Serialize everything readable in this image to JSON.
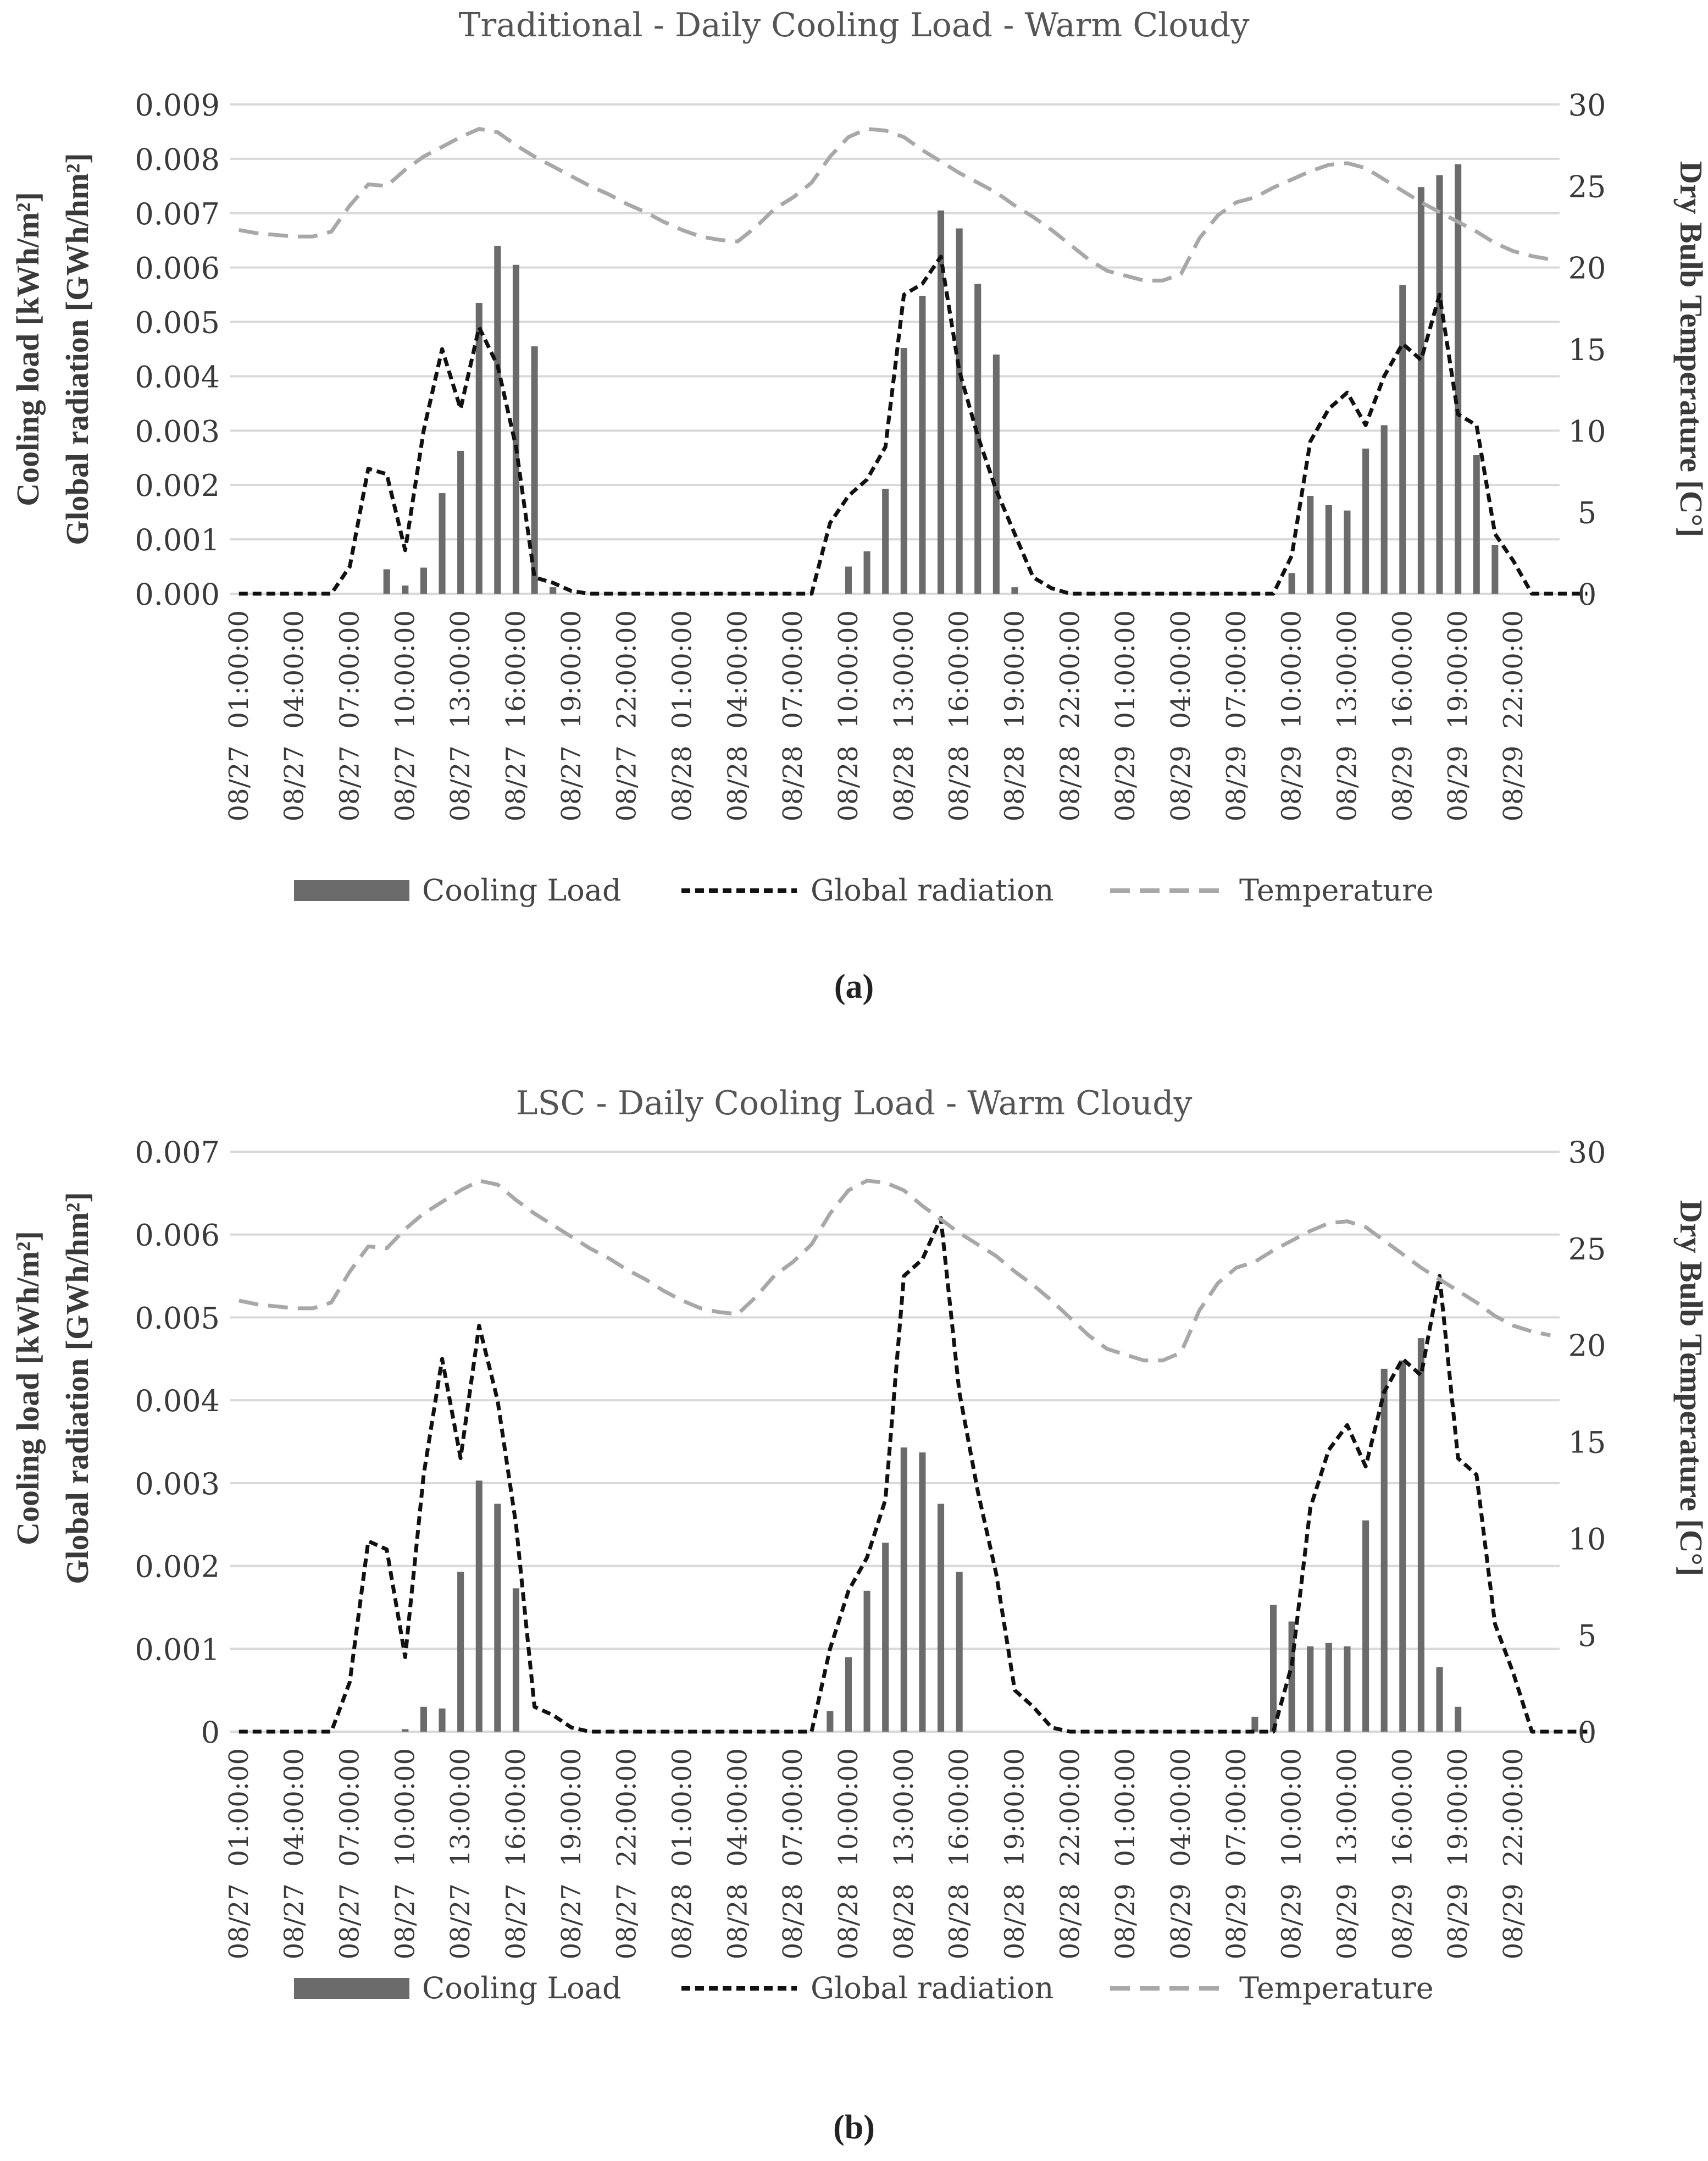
{
  "charts": [
    {
      "id": "a",
      "panel_label": "(a)",
      "title": "Traditional - Daily Cooling Load - Warm Cloudy",
      "ylabel_left_line1": "Cooling load [kWh/m²]",
      "ylabel_left_line2": "Global radiation [GWh/hm²]",
      "ylabel_right": "Dry Bulb Temperature [C°]",
      "legend": {
        "bar": "Cooling Load",
        "radiation": "Global radiation",
        "temperature": "Temperature"
      }
    },
    {
      "id": "b",
      "panel_label": "(b)",
      "title": "LSC - Daily Cooling Load - Warm Cloudy",
      "ylabel_left_line1": "Cooling load [kWh/m²]",
      "ylabel_left_line2": "Global radiation [GWh/hm²]",
      "ylabel_right": "Dry Bulb Temperature [C°]",
      "legend": {
        "bar": "Cooling Load",
        "radiation": "Global radiation",
        "temperature": "Temperature"
      }
    }
  ],
  "chart_data": [
    {
      "type": "bar+line",
      "title": "Traditional - Daily Cooling Load - Warm Cloudy",
      "x_hours": "1..72 (hourly, 08/27 01:00 to 08/29 24:00)",
      "x_tick_labels": [
        "08/27  01:00:00",
        "08/27  04:00:00",
        "08/27  07:00:00",
        "08/27  10:00:00",
        "08/27  13:00:00",
        "08/27  16:00:00",
        "08/27  19:00:00",
        "08/27  22:00:00",
        "08/28  01:00:00",
        "08/28  04:00:00",
        "08/28  07:00:00",
        "08/28  10:00:00",
        "08/28  13:00:00",
        "08/28  16:00:00",
        "08/28  19:00:00",
        "08/28  22:00:00",
        "08/29  01:00:00",
        "08/29  04:00:00",
        "08/29  07:00:00",
        "08/29  10:00:00",
        "08/29  13:00:00",
        "08/29  16:00:00",
        "08/29  19:00:00",
        "08/29  22:00:00"
      ],
      "y_left": {
        "label": "Cooling load [kWh/m²] / Global radiation [GWh/hm²]",
        "min": 0,
        "max": 0.009,
        "step": 0.001,
        "tick_labels": [
          "0.000",
          "0.001",
          "0.002",
          "0.003",
          "0.004",
          "0.005",
          "0.006",
          "0.007",
          "0.008",
          "0.009"
        ]
      },
      "y_right": {
        "label": "Dry Bulb Temperature [C°]",
        "min": 0,
        "max": 30,
        "step": 5,
        "tick_labels": [
          "0",
          "5",
          "10",
          "15",
          "20",
          "25",
          "30"
        ]
      },
      "series": [
        {
          "name": "Cooling Load",
          "kind": "bar",
          "axis": "left",
          "values": [
            0,
            0,
            0,
            0,
            0,
            0,
            0,
            0,
            0.00045,
            0.00015,
            0.00048,
            0.00185,
            0.00263,
            0.00535,
            0.0064,
            0.00605,
            0.00455,
            0.00012,
            0,
            0,
            0,
            0,
            0,
            0,
            0,
            0,
            0,
            0,
            0,
            0,
            0,
            0,
            0,
            0.0005,
            0.00078,
            0.00193,
            0.00452,
            0.00548,
            0.00705,
            0.00672,
            0.0057,
            0.0044,
            0.00012,
            0,
            0,
            0,
            0,
            0,
            0,
            0,
            0,
            0,
            0,
            0,
            0,
            0,
            0,
            0.00038,
            0.0018,
            0.00163,
            0.00153,
            0.00267,
            0.0031,
            0.00568,
            0.00748,
            0.0077,
            0.0079,
            0.00255,
            0.0009,
            0,
            0,
            0
          ]
        },
        {
          "name": "Global radiation",
          "kind": "line",
          "style": "dashed-black",
          "axis": "left",
          "values": [
            0,
            0,
            0,
            0,
            0,
            0,
            0.0005,
            0.0023,
            0.0022,
            0.0008,
            0.003,
            0.0045,
            0.0034,
            0.0049,
            0.0042,
            0.0027,
            0.0003,
            0.0002,
            5e-05,
            0,
            0,
            0,
            0,
            0,
            0,
            0,
            0,
            0,
            0,
            0,
            0,
            0,
            0.0013,
            0.0018,
            0.0021,
            0.0027,
            0.0055,
            0.0057,
            0.0062,
            0.0041,
            0.0029,
            0.0019,
            0.0011,
            0.0003,
            0.0001,
            0,
            0,
            0,
            0,
            0,
            0,
            0,
            0,
            0,
            0,
            0,
            0,
            0.0007,
            0.0028,
            0.0034,
            0.0037,
            0.0031,
            0.004,
            0.0046,
            0.0043,
            0.0055,
            0.0033,
            0.0031,
            0.0011,
            0.0006,
            0,
            0,
            0,
            0
          ]
        },
        {
          "name": "Temperature",
          "kind": "line",
          "style": "dashed-gray",
          "axis": "right",
          "values": [
            22.3,
            22.1,
            22,
            21.9,
            21.9,
            22.2,
            23.8,
            25.1,
            25,
            26,
            26.8,
            27.4,
            28,
            28.5,
            28.3,
            27.5,
            26.8,
            26.2,
            25.6,
            25,
            24.5,
            23.9,
            23.4,
            22.8,
            22.3,
            21.9,
            21.7,
            21.6,
            22.5,
            23.6,
            24.3,
            25.2,
            26.8,
            28,
            28.5,
            28.4,
            28,
            27.2,
            26.5,
            25.8,
            25.2,
            24.6,
            23.8,
            23.1,
            22.3,
            21.4,
            20.5,
            19.8,
            19.5,
            19.2,
            19.2,
            19.6,
            21.8,
            23.2,
            24,
            24.3,
            24.9,
            25.4,
            25.9,
            26.3,
            26.4,
            26.1,
            25.4,
            24.7,
            24,
            23.4,
            22.8,
            22.2,
            21.5,
            21,
            20.7,
            20.5
          ]
        }
      ]
    },
    {
      "type": "bar+line",
      "title": "LSC - Daily Cooling Load - Warm Cloudy",
      "x_hours": "1..72 (hourly, 08/27 01:00 to 08/29 24:00)",
      "x_tick_labels": [
        "08/27  01:00:00",
        "08/27  04:00:00",
        "08/27  07:00:00",
        "08/27  10:00:00",
        "08/27  13:00:00",
        "08/27  16:00:00",
        "08/27  19:00:00",
        "08/27  22:00:00",
        "08/28  01:00:00",
        "08/28  04:00:00",
        "08/28  07:00:00",
        "08/28  10:00:00",
        "08/28  13:00:00",
        "08/28  16:00:00",
        "08/28  19:00:00",
        "08/28  22:00:00",
        "08/29  01:00:00",
        "08/29  04:00:00",
        "08/29  07:00:00",
        "08/29  10:00:00",
        "08/29  13:00:00",
        "08/29  16:00:00",
        "08/29  19:00:00",
        "08/29  22:00:00"
      ],
      "y_left": {
        "label": "Cooling load [kWh/m²] / Global radiation [GWh/hm²]",
        "min": 0,
        "max": 0.007,
        "step": 0.001,
        "tick_labels": [
          "0",
          "0.001",
          "0.002",
          "0.003",
          "0.004",
          "0.005",
          "0.006",
          "0.007"
        ]
      },
      "y_right": {
        "label": "Dry Bulb Temperature [C°]",
        "min": 0,
        "max": 30,
        "step": 5,
        "tick_labels": [
          "0",
          "5",
          "10",
          "15",
          "20",
          "25",
          "30"
        ]
      },
      "series": [
        {
          "name": "Cooling Load",
          "kind": "bar",
          "axis": "left",
          "values": [
            0,
            0,
            0,
            0,
            0,
            0,
            0,
            0,
            0,
            3e-05,
            0.0003,
            0.00028,
            0.00193,
            0.00303,
            0.00275,
            0.00173,
            0,
            0,
            0,
            0,
            0,
            0,
            0,
            0,
            0,
            0,
            0,
            0,
            0,
            0,
            0,
            0,
            0.00025,
            0.0009,
            0.0017,
            0.00228,
            0.00343,
            0.00337,
            0.00275,
            0.00193,
            0,
            0,
            0,
            0,
            0,
            0,
            0,
            0,
            0,
            0,
            0,
            0,
            0,
            0,
            0,
            0.00018,
            0.00153,
            0.00133,
            0.00103,
            0.00107,
            0.00103,
            0.00255,
            0.00438,
            0.00448,
            0.00475,
            0.00078,
            0.0003,
            0,
            0,
            0,
            0,
            0
          ]
        },
        {
          "name": "Global radiation",
          "kind": "line",
          "style": "dashed-black",
          "axis": "left",
          "values": [
            0,
            0,
            0,
            0,
            0,
            0,
            0.0006,
            0.0023,
            0.0022,
            0.0009,
            0.0031,
            0.0045,
            0.0033,
            0.0049,
            0.004,
            0.0025,
            0.0003,
            0.0002,
            5e-05,
            0,
            0,
            0,
            0,
            0,
            0,
            0,
            0,
            0,
            0,
            0,
            0,
            0,
            0.001,
            0.0017,
            0.0021,
            0.0028,
            0.0055,
            0.0057,
            0.0062,
            0.0041,
            0.0029,
            0.0019,
            0.0005,
            0.0003,
            5e-05,
            0,
            0,
            0,
            0,
            0,
            0,
            0,
            0,
            0,
            0,
            0,
            0,
            0.0008,
            0.0027,
            0.0034,
            0.0037,
            0.0032,
            0.0041,
            0.0045,
            0.0043,
            0.0055,
            0.0033,
            0.0031,
            0.0013,
            0.0007,
            0,
            0,
            0,
            0
          ]
        },
        {
          "name": "Temperature",
          "kind": "line",
          "style": "dashed-gray",
          "axis": "right",
          "values": [
            22.3,
            22.1,
            22,
            21.9,
            21.9,
            22.2,
            23.8,
            25.1,
            25,
            26,
            26.8,
            27.4,
            28,
            28.5,
            28.3,
            27.5,
            26.8,
            26.2,
            25.6,
            25,
            24.5,
            23.9,
            23.4,
            22.8,
            22.3,
            21.9,
            21.7,
            21.6,
            22.5,
            23.6,
            24.3,
            25.2,
            26.8,
            28,
            28.5,
            28.4,
            28,
            27.2,
            26.5,
            25.8,
            25.2,
            24.6,
            23.8,
            23.1,
            22.3,
            21.4,
            20.5,
            19.8,
            19.5,
            19.2,
            19.2,
            19.6,
            21.8,
            23.2,
            24,
            24.3,
            24.9,
            25.4,
            25.9,
            26.3,
            26.4,
            26.1,
            25.4,
            24.7,
            24,
            23.4,
            22.8,
            22.2,
            21.5,
            21,
            20.7,
            20.5
          ]
        }
      ]
    }
  ]
}
